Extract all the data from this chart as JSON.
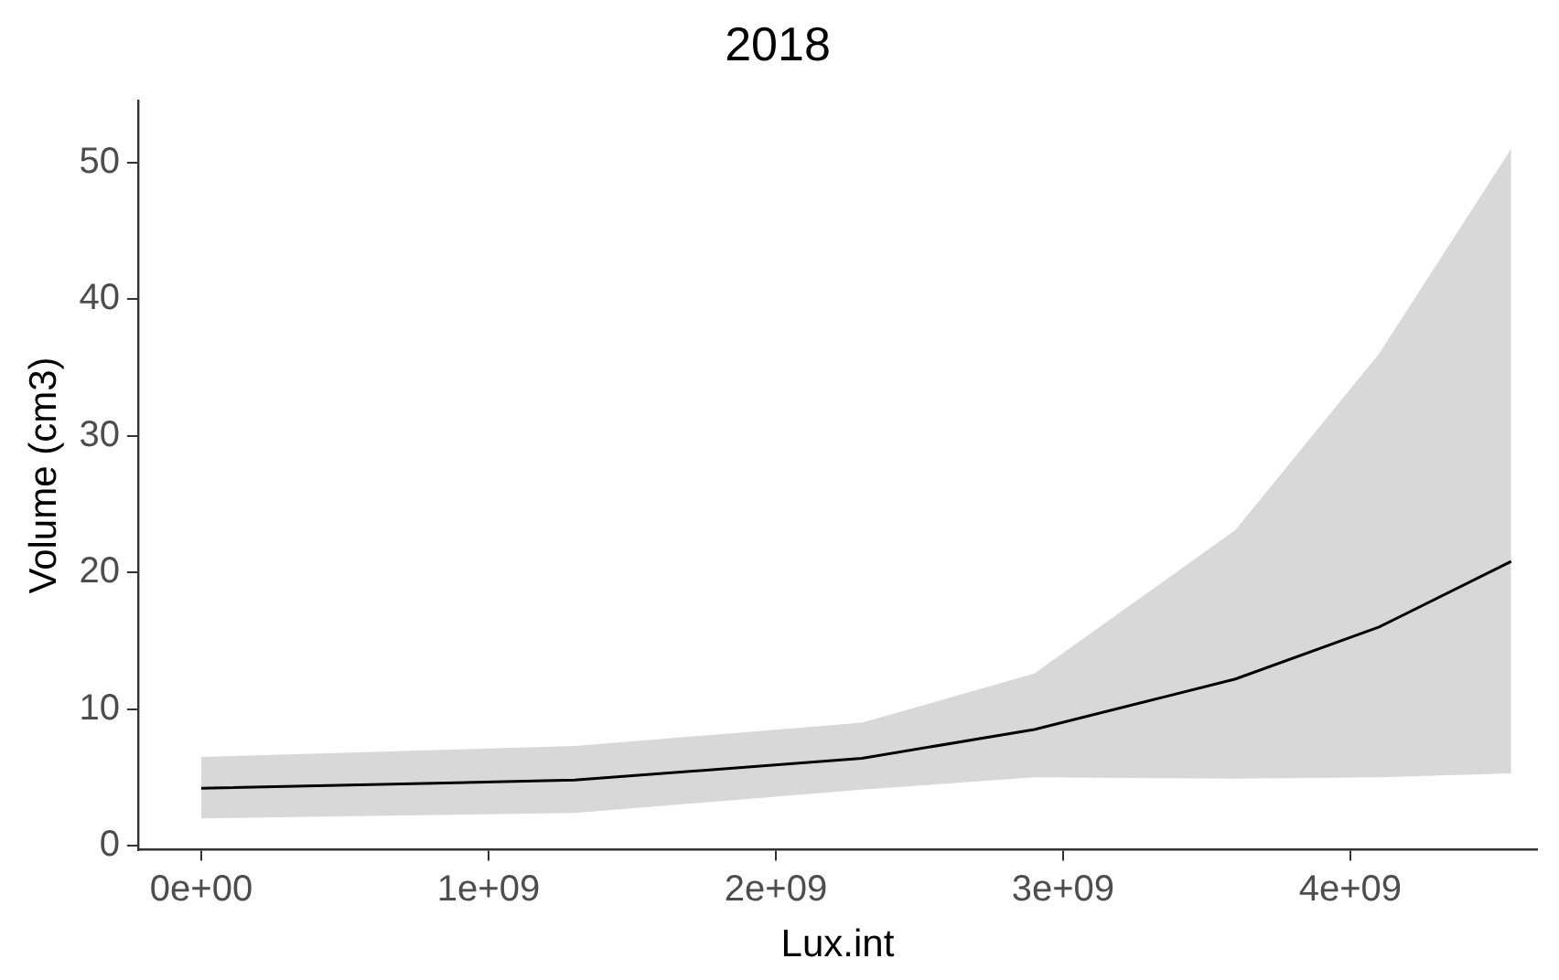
{
  "chart_data": {
    "type": "line",
    "title": "2018",
    "xlabel": "Lux.int",
    "ylabel": "Volume (cm3)",
    "x": [
      0,
      1300000000,
      2300000000,
      2900000000,
      3600000000,
      4100000000,
      4560000000
    ],
    "series": [
      {
        "color": "#000000",
        "values": [
          4.2,
          4.8,
          6.4,
          8.5,
          12.2,
          16,
          20.8
        ],
        "lower": [
          2,
          2.4,
          4.1,
          5,
          4.9,
          5,
          5.3
        ],
        "upper": [
          6.5,
          7.3,
          9,
          12.6,
          23.1,
          36,
          51
        ]
      }
    ],
    "xlim": [
      -220000000,
      4650000000
    ],
    "ylim": [
      -0.3,
      54.5
    ],
    "xticks": [
      {
        "value": 0,
        "label": "0e+00"
      },
      {
        "value": 1000000000,
        "label": "1e+09"
      },
      {
        "value": 2000000000,
        "label": "2e+09"
      },
      {
        "value": 3000000000,
        "label": "3e+09"
      },
      {
        "value": 4000000000,
        "label": "4e+09"
      }
    ],
    "yticks": [
      0,
      10,
      20,
      30,
      40,
      50
    ],
    "grid": false,
    "legend": false,
    "marker": "none",
    "line_style": "solid"
  }
}
